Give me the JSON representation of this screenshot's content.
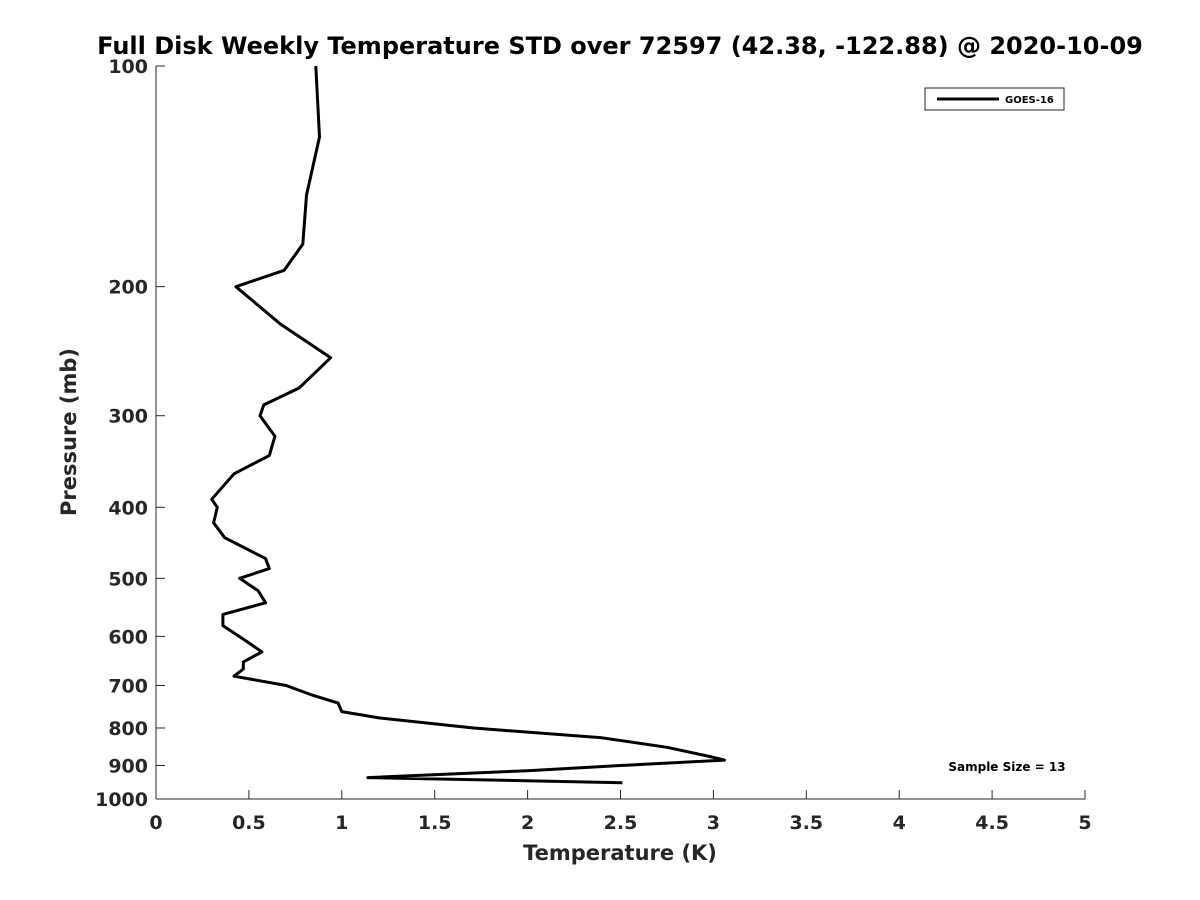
{
  "chart_data": {
    "type": "line",
    "title": "Full Disk Weekly Temperature STD over 72597 (42.38, -122.88) @ 2020-10-09",
    "xlabel": "Temperature (K)",
    "ylabel": "Pressure (mb)",
    "xlim": [
      0,
      5
    ],
    "ylim": [
      100,
      1000
    ],
    "y_scale": "log",
    "y_reversed": true,
    "xticks": [
      0,
      0.5,
      1,
      1.5,
      2,
      2.5,
      3,
      3.5,
      4,
      4.5,
      5
    ],
    "yticks": [
      100,
      200,
      300,
      400,
      500,
      600,
      700,
      800,
      900,
      1000
    ],
    "grid": false,
    "legend_position": "top-right",
    "series": [
      {
        "name": "GOES-16",
        "color": "#000000",
        "points": [
          [
            0.86,
            100
          ],
          [
            0.88,
            125
          ],
          [
            0.81,
            150
          ],
          [
            0.79,
            175
          ],
          [
            0.69,
            190
          ],
          [
            0.43,
            200
          ],
          [
            0.67,
            225
          ],
          [
            0.94,
            250
          ],
          [
            0.77,
            275
          ],
          [
            0.58,
            290
          ],
          [
            0.56,
            300
          ],
          [
            0.64,
            320
          ],
          [
            0.61,
            340
          ],
          [
            0.42,
            360
          ],
          [
            0.3,
            390
          ],
          [
            0.33,
            400
          ],
          [
            0.31,
            420
          ],
          [
            0.37,
            440
          ],
          [
            0.59,
            470
          ],
          [
            0.61,
            485
          ],
          [
            0.45,
            500
          ],
          [
            0.55,
            520
          ],
          [
            0.59,
            540
          ],
          [
            0.36,
            560
          ],
          [
            0.36,
            580
          ],
          [
            0.49,
            610
          ],
          [
            0.57,
            630
          ],
          [
            0.47,
            650
          ],
          [
            0.47,
            665
          ],
          [
            0.42,
            680
          ],
          [
            0.7,
            700
          ],
          [
            0.83,
            720
          ],
          [
            0.98,
            740
          ],
          [
            1.0,
            760
          ],
          [
            1.2,
            775
          ],
          [
            1.71,
            800
          ],
          [
            2.4,
            825
          ],
          [
            2.75,
            850
          ],
          [
            2.98,
            875
          ],
          [
            3.06,
            885
          ],
          [
            2.5,
            900
          ],
          [
            2.0,
            915
          ],
          [
            1.14,
            935
          ],
          [
            2.51,
            950
          ]
        ]
      }
    ],
    "annotation": "Sample Size = 13"
  }
}
